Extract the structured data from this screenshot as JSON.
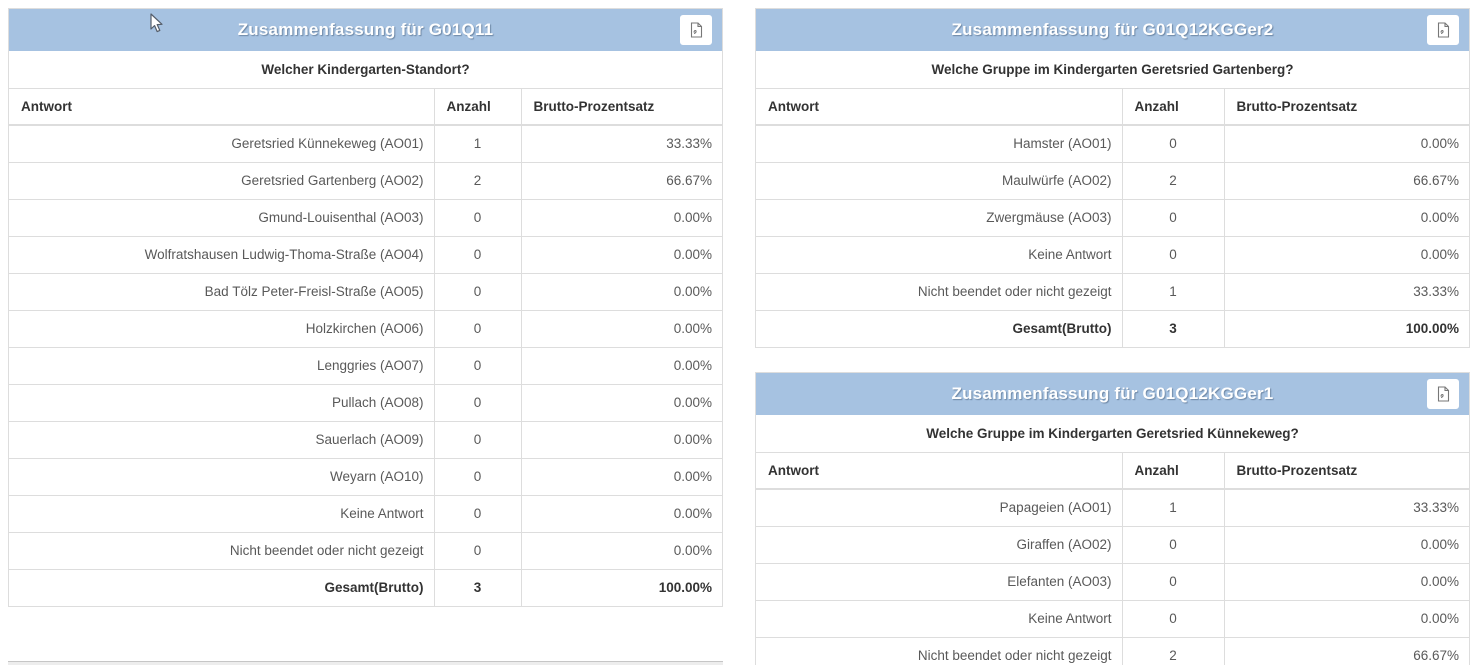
{
  "theme": {
    "panel_header_bg": "#a6c2e1",
    "panel_header_text": "#ffffff",
    "table_border": "#dddddd",
    "cell_text": "#595959",
    "strong_text": "#333333"
  },
  "icons": {
    "export_icon": "pdf-document-icon",
    "cursor": "mouse-arrow-cursor"
  },
  "panels": [
    {
      "title": "Zusammenfassung für G01Q11",
      "question": "Welcher Kindergarten-Standort?",
      "columns": {
        "answer": "Antwort",
        "count": "Anzahl",
        "percent": "Brutto-Prozentsatz"
      },
      "rows": [
        {
          "answer": "Geretsried Künnekeweg (AO01)",
          "count": "1",
          "percent": "33.33%"
        },
        {
          "answer": "Geretsried Gartenberg (AO02)",
          "count": "2",
          "percent": "66.67%"
        },
        {
          "answer": "Gmund-Louisenthal (AO03)",
          "count": "0",
          "percent": "0.00%"
        },
        {
          "answer": "Wolfratshausen Ludwig-Thoma-Straße (AO04)",
          "count": "0",
          "percent": "0.00%"
        },
        {
          "answer": "Bad Tölz Peter-Freisl-Straße (AO05)",
          "count": "0",
          "percent": "0.00%"
        },
        {
          "answer": "Holzkirchen (AO06)",
          "count": "0",
          "percent": "0.00%"
        },
        {
          "answer": "Lenggries (AO07)",
          "count": "0",
          "percent": "0.00%"
        },
        {
          "answer": "Pullach (AO08)",
          "count": "0",
          "percent": "0.00%"
        },
        {
          "answer": "Sauerlach (AO09)",
          "count": "0",
          "percent": "0.00%"
        },
        {
          "answer": "Weyarn (AO10)",
          "count": "0",
          "percent": "0.00%"
        },
        {
          "answer": "Keine Antwort",
          "count": "0",
          "percent": "0.00%"
        },
        {
          "answer": "Nicht beendet oder nicht gezeigt",
          "count": "0",
          "percent": "0.00%"
        },
        {
          "answer": "Gesamt(Brutto)",
          "count": "3",
          "percent": "100.00%",
          "bold": true
        }
      ]
    },
    {
      "title": "Zusammenfassung für G01Q12KGGer2",
      "question": "Welche Gruppe im Kindergarten Geretsried Gartenberg?",
      "columns": {
        "answer": "Antwort",
        "count": "Anzahl",
        "percent": "Brutto-Prozentsatz"
      },
      "rows": [
        {
          "answer": "Hamster (AO01)",
          "count": "0",
          "percent": "0.00%"
        },
        {
          "answer": "Maulwürfe (AO02)",
          "count": "2",
          "percent": "66.67%"
        },
        {
          "answer": "Zwergmäuse (AO03)",
          "count": "0",
          "percent": "0.00%"
        },
        {
          "answer": "Keine Antwort",
          "count": "0",
          "percent": "0.00%"
        },
        {
          "answer": "Nicht beendet oder nicht gezeigt",
          "count": "1",
          "percent": "33.33%"
        },
        {
          "answer": "Gesamt(Brutto)",
          "count": "3",
          "percent": "100.00%",
          "bold": true
        }
      ]
    },
    {
      "title": "Zusammenfassung für G01Q12KGGer1",
      "question": "Welche Gruppe im Kindergarten Geretsried Künnekeweg?",
      "columns": {
        "answer": "Antwort",
        "count": "Anzahl",
        "percent": "Brutto-Prozentsatz"
      },
      "rows": [
        {
          "answer": "Papageien (AO01)",
          "count": "1",
          "percent": "33.33%"
        },
        {
          "answer": "Giraffen (AO02)",
          "count": "0",
          "percent": "0.00%"
        },
        {
          "answer": "Elefanten (AO03)",
          "count": "0",
          "percent": "0.00%"
        },
        {
          "answer": "Keine Antwort",
          "count": "0",
          "percent": "0.00%"
        },
        {
          "answer": "Nicht beendet oder nicht gezeigt",
          "count": "2",
          "percent": "66.67%"
        }
      ]
    }
  ]
}
